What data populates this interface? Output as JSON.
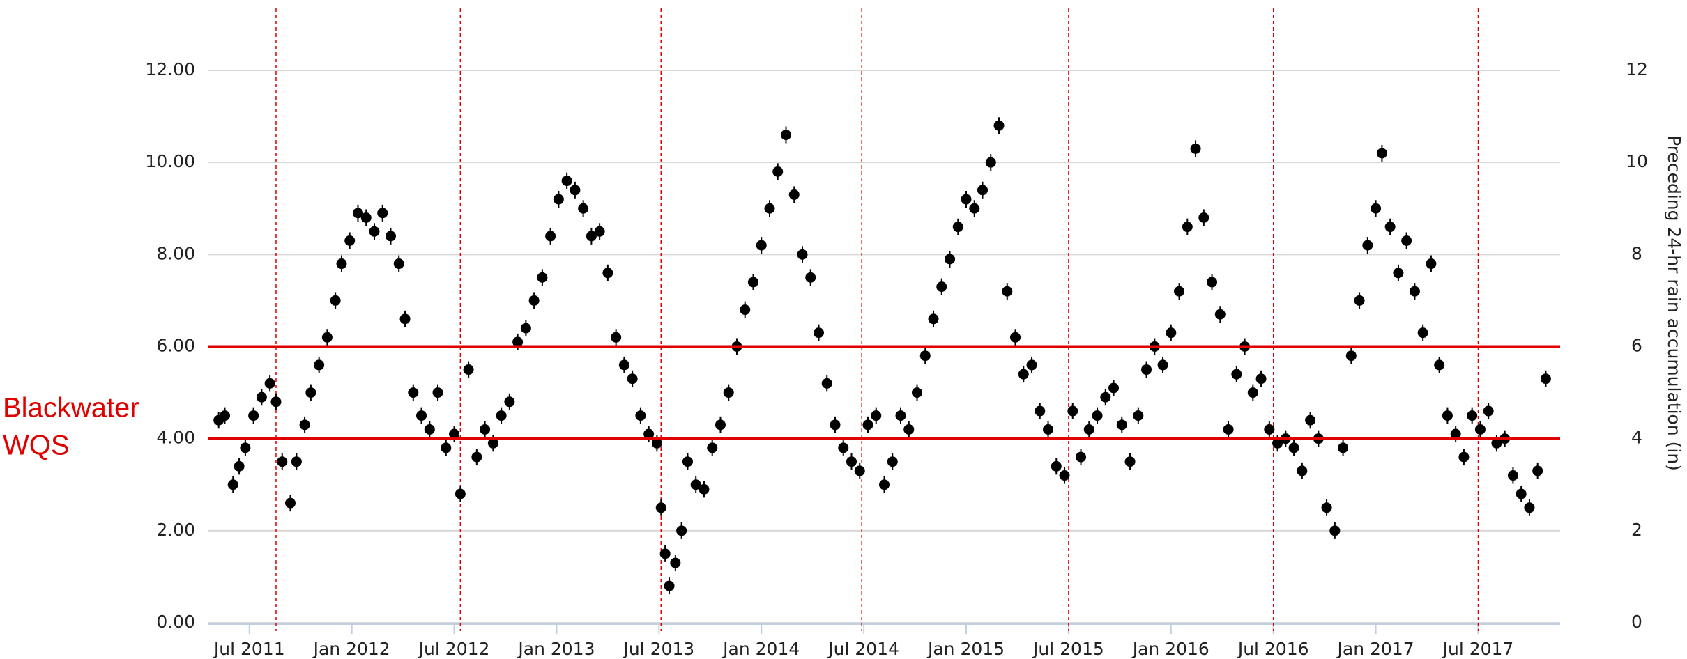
{
  "chart_data": {
    "type": "scatter",
    "x": [
      2011.35,
      2011.38,
      2011.42,
      2011.45,
      2011.48,
      2011.52,
      2011.56,
      2011.6,
      2011.63,
      2011.66,
      2011.7,
      2011.73,
      2011.77,
      2011.8,
      2011.84,
      2011.88,
      2011.92,
      2011.95,
      2011.99,
      2012.03,
      2012.07,
      2012.11,
      2012.15,
      2012.19,
      2012.23,
      2012.26,
      2012.3,
      2012.34,
      2012.38,
      2012.42,
      2012.46,
      2012.5,
      2012.53,
      2012.57,
      2012.61,
      2012.65,
      2012.69,
      2012.73,
      2012.77,
      2012.81,
      2012.85,
      2012.89,
      2012.93,
      2012.97,
      2013.01,
      2013.05,
      2013.09,
      2013.13,
      2013.17,
      2013.21,
      2013.25,
      2013.29,
      2013.33,
      2013.37,
      2013.41,
      2013.45,
      2013.49,
      2013.51,
      2013.53,
      2013.55,
      2013.58,
      2013.61,
      2013.64,
      2013.68,
      2013.72,
      2013.76,
      2013.8,
      2013.84,
      2013.88,
      2013.92,
      2013.96,
      2014.0,
      2014.04,
      2014.08,
      2014.12,
      2014.16,
      2014.2,
      2014.24,
      2014.28,
      2014.32,
      2014.36,
      2014.4,
      2014.44,
      2014.48,
      2014.52,
      2014.56,
      2014.6,
      2014.64,
      2014.68,
      2014.72,
      2014.76,
      2014.8,
      2014.84,
      2014.88,
      2014.92,
      2014.96,
      2015.0,
      2015.04,
      2015.08,
      2015.12,
      2015.16,
      2015.2,
      2015.24,
      2015.28,
      2015.32,
      2015.36,
      2015.4,
      2015.44,
      2015.48,
      2015.52,
      2015.56,
      2015.6,
      2015.64,
      2015.68,
      2015.72,
      2015.76,
      2015.8,
      2015.84,
      2015.88,
      2015.92,
      2015.96,
      2016.0,
      2016.04,
      2016.08,
      2016.12,
      2016.16,
      2016.2,
      2016.24,
      2016.28,
      2016.32,
      2016.36,
      2016.4,
      2016.44,
      2016.48,
      2016.52,
      2016.56,
      2016.6,
      2016.64,
      2016.68,
      2016.72,
      2016.76,
      2016.8,
      2016.84,
      2016.88,
      2016.92,
      2016.96,
      2017.0,
      2017.03,
      2017.07,
      2017.11,
      2017.15,
      2017.19,
      2017.23,
      2017.27,
      2017.31,
      2017.35,
      2017.39,
      2017.43,
      2017.47,
      2017.51,
      2017.55,
      2017.59,
      2017.63,
      2017.67,
      2017.71,
      2017.75,
      2017.79,
      2017.83
    ],
    "values": [
      4.4,
      4.5,
      3.0,
      3.4,
      3.8,
      4.5,
      4.9,
      5.2,
      4.8,
      3.5,
      2.6,
      3.5,
      4.3,
      5.0,
      5.6,
      6.2,
      7.0,
      7.8,
      8.3,
      8.9,
      8.8,
      8.5,
      8.9,
      8.4,
      7.8,
      6.6,
      5.0,
      4.5,
      4.2,
      5.0,
      3.8,
      4.1,
      2.8,
      5.5,
      3.6,
      4.2,
      3.9,
      4.5,
      4.8,
      6.1,
      6.4,
      7.0,
      7.5,
      8.4,
      9.2,
      9.6,
      9.4,
      9.0,
      8.4,
      8.5,
      7.6,
      6.2,
      5.6,
      5.3,
      4.5,
      4.1,
      3.9,
      2.5,
      1.5,
      0.8,
      1.3,
      2.0,
      3.5,
      3.0,
      2.9,
      3.8,
      4.3,
      5.0,
      6.0,
      6.8,
      7.4,
      8.2,
      9.0,
      9.8,
      10.6,
      9.3,
      8.0,
      7.5,
      6.3,
      5.2,
      4.3,
      3.8,
      3.5,
      3.3,
      4.3,
      4.5,
      3.0,
      3.5,
      4.5,
      4.2,
      5.0,
      5.8,
      6.6,
      7.3,
      7.9,
      8.6,
      9.2,
      9.0,
      9.4,
      10.0,
      10.8,
      7.2,
      6.2,
      5.4,
      5.6,
      4.6,
      4.2,
      3.4,
      3.2,
      4.6,
      3.6,
      4.2,
      4.5,
      4.9,
      5.1,
      4.3,
      3.5,
      4.5,
      5.5,
      6.0,
      5.6,
      6.3,
      7.2,
      8.6,
      10.3,
      8.8,
      7.4,
      6.7,
      4.2,
      5.4,
      6.0,
      5.0,
      5.3,
      4.2,
      3.9,
      4.0,
      3.8,
      3.3,
      4.4,
      4.0,
      2.5,
      2.0,
      3.8,
      5.8,
      7.0,
      8.2,
      9.0,
      10.2,
      8.6,
      7.6,
      8.3,
      7.2,
      6.3,
      7.8,
      5.6,
      4.5,
      4.1,
      3.6,
      4.5,
      4.2,
      4.6,
      3.9,
      4.0,
      3.2,
      2.8,
      2.5,
      3.3,
      5.3
    ],
    "color": "#000000",
    "xlim": [
      2011.3,
      2017.9
    ],
    "xticks": [
      {
        "value": 2011.5,
        "label": "Jul 2011"
      },
      {
        "value": 2012.0,
        "label": "Jan 2012"
      },
      {
        "value": 2012.5,
        "label": "Jul 2012"
      },
      {
        "value": 2013.0,
        "label": "Jan 2013"
      },
      {
        "value": 2013.5,
        "label": "Jul 2013"
      },
      {
        "value": 2014.0,
        "label": "Jan 2014"
      },
      {
        "value": 2014.5,
        "label": "Jul 2014"
      },
      {
        "value": 2015.0,
        "label": "Jan 2015"
      },
      {
        "value": 2015.5,
        "label": "Jul 2015"
      },
      {
        "value": 2016.0,
        "label": "Jan 2016"
      },
      {
        "value": 2016.5,
        "label": "Jul 2016"
      },
      {
        "value": 2017.0,
        "label": "Jan 2017"
      },
      {
        "value": 2017.5,
        "label": "Jul 2017"
      }
    ],
    "ylim": [
      0,
      12
    ],
    "yticks": [
      {
        "value": 0,
        "label": "0.00"
      },
      {
        "value": 2,
        "label": "2.00"
      },
      {
        "value": 4,
        "label": "4.00"
      },
      {
        "value": 6,
        "label": "6.00"
      },
      {
        "value": 8,
        "label": "8.00"
      },
      {
        "value": 10,
        "label": "10.00"
      },
      {
        "value": 12,
        "label": "12.00"
      }
    ],
    "y2lim": [
      0,
      12
    ],
    "y2ticks": [
      0,
      2,
      4,
      6,
      8,
      10,
      12
    ],
    "y2label": "Preceding 24-hr rain accumulation (in)",
    "grid": true,
    "reference_lines": [
      6,
      4
    ],
    "reference_color": "#e00000",
    "vlines": [
      2011.63,
      2012.53,
      2013.51,
      2014.49,
      2015.5,
      2016.5,
      2017.5
    ],
    "annotation": [
      "Blackwater",
      "WQS"
    ]
  }
}
